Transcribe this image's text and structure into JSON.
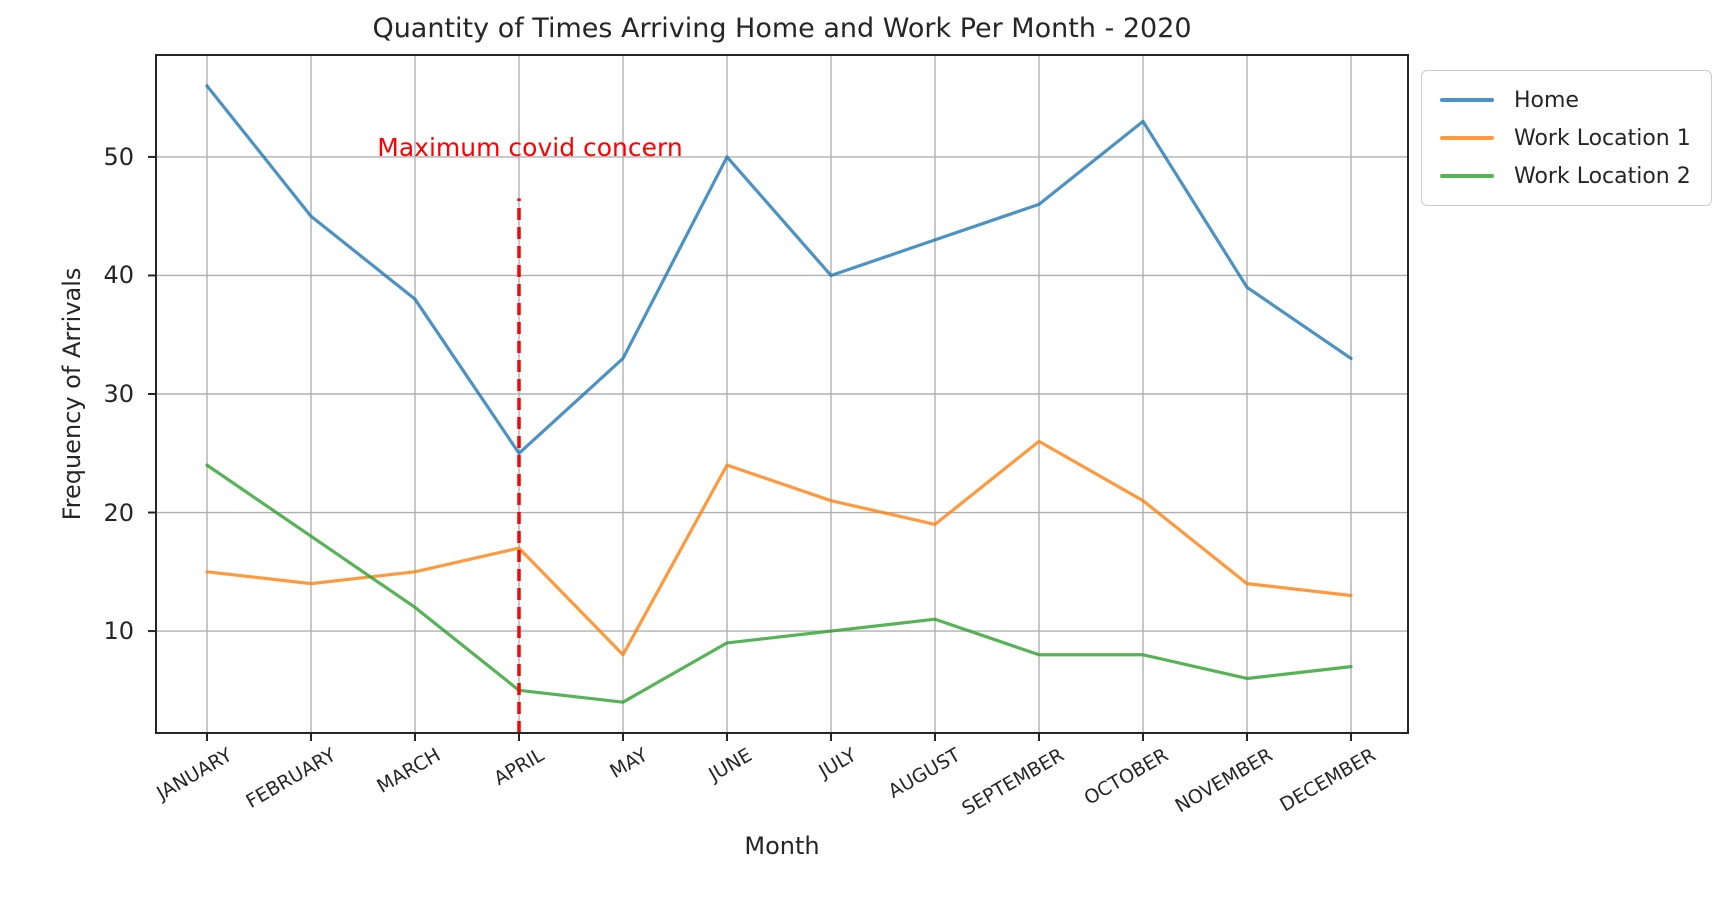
{
  "chart_data": {
    "type": "line",
    "title": "Quantity of Times Arriving Home and Work Per Month - 2020",
    "xlabel": "Month",
    "ylabel": "Frequency of Arrivals",
    "categories": [
      "JANUARY",
      "FEBRUARY",
      "MARCH",
      "APRIL",
      "MAY",
      "JUNE",
      "JULY",
      "AUGUST",
      "SEPTEMBER",
      "OCTOBER",
      "NOVEMBER",
      "DECEMBER"
    ],
    "series": [
      {
        "name": "Home",
        "color": "#1f77b4",
        "alpha": 0.8,
        "values": [
          56,
          45,
          38,
          25,
          33,
          50,
          40,
          43,
          46,
          53,
          39,
          33
        ]
      },
      {
        "name": "Work Location 1",
        "color": "#ff7f0e",
        "alpha": 0.8,
        "values": [
          15,
          14,
          15,
          17,
          8,
          24,
          21,
          19,
          26,
          21,
          14,
          13
        ]
      },
      {
        "name": "Work Location 2",
        "color": "#2ca02c",
        "alpha": 0.8,
        "values": [
          24,
          18,
          12,
          5,
          4,
          9,
          10,
          11,
          8,
          8,
          6,
          7
        ]
      }
    ],
    "yticks": [
      10,
      20,
      30,
      40,
      50
    ],
    "ylim": [
      1.4,
      58.6
    ],
    "grid": true,
    "legend_position": "outside upper right",
    "annotation": {
      "text": "Maximum covid concern",
      "color": "#ff0000",
      "at_month": "APRIL",
      "y_value": 50.5
    },
    "vline": {
      "at_month": "APRIL",
      "color": "#ff0000",
      "style": "dashed",
      "y_top_value": 46.5
    },
    "axis_color": "#262626",
    "grid_color": "#b0b0b0",
    "background": "#ffffff"
  }
}
